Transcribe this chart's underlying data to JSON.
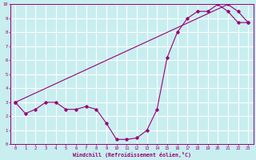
{
  "xlabel": "Windchill (Refroidissement éolien,°C)",
  "ylabel": "",
  "bg_color": "#c8eef0",
  "line_color": "#990077",
  "grid_color": "#ffffff",
  "xlim": [
    -0.5,
    23.5
  ],
  "ylim": [
    0,
    10
  ],
  "xticks": [
    0,
    1,
    2,
    3,
    4,
    5,
    6,
    7,
    8,
    9,
    10,
    11,
    12,
    13,
    14,
    15,
    16,
    17,
    18,
    19,
    20,
    21,
    22,
    23
  ],
  "yticks": [
    0,
    1,
    2,
    3,
    4,
    5,
    6,
    7,
    8,
    9,
    10
  ],
  "curve1_x": [
    0,
    1,
    2,
    3,
    4,
    5,
    6,
    7,
    8,
    9,
    10,
    11,
    12,
    13,
    14,
    15,
    16,
    17,
    18,
    19,
    20,
    21,
    22,
    23
  ],
  "curve1_y": [
    3.0,
    2.2,
    2.5,
    3.0,
    3.0,
    2.5,
    2.5,
    2.7,
    2.5,
    1.5,
    0.35,
    0.35,
    0.45,
    1.0,
    2.5,
    6.2,
    8.0,
    9.0,
    9.5,
    9.5,
    10.0,
    9.5,
    8.7,
    8.7
  ],
  "curve2_x": [
    0,
    21,
    22,
    23
  ],
  "curve2_y": [
    3.0,
    10.0,
    9.5,
    8.7
  ]
}
